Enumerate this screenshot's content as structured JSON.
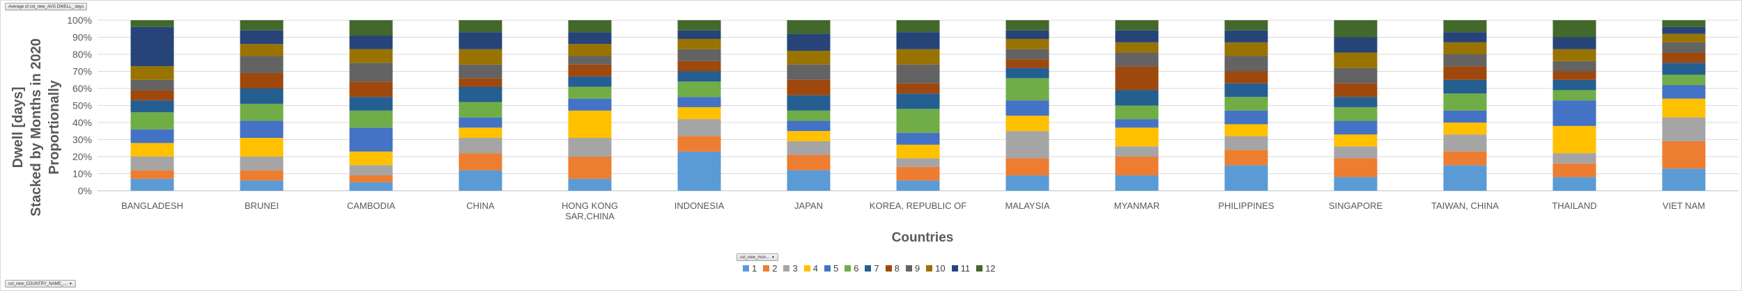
{
  "field_buttons": {
    "value_field": "Average of col_new_AVG DWELL_ days",
    "legend_field": "col_new_mon...",
    "axis_field": "col_new_COUNTRY_NAME_..."
  },
  "colors": [
    "#5b9bd5",
    "#ed7d31",
    "#a5a5a5",
    "#ffc000",
    "#4472c4",
    "#70ad47",
    "#255e91",
    "#9e480e",
    "#636363",
    "#997300",
    "#264478",
    "#43682b"
  ],
  "chart_data": {
    "type": "bar",
    "stacked": "percent",
    "xlabel": "Countries",
    "ylabel": [
      "Dwell [days]",
      "Stacked by Months in 2020",
      "Proportionally"
    ],
    "ylim": [
      0,
      100
    ],
    "yticks": [
      "0%",
      "10%",
      "20%",
      "30%",
      "40%",
      "50%",
      "60%",
      "70%",
      "80%",
      "90%",
      "100%"
    ],
    "categories": [
      "BANGLADESH",
      "BRUNEI",
      "CAMBODIA",
      "CHINA",
      "HONG KONG SAR,CHINA",
      "INDONESIA",
      "JAPAN",
      "KOREA, REPUBLIC OF",
      "MALAYSIA",
      "MYANMAR",
      "PHILIPPINES",
      "SINGAPORE",
      "TAIWAN, CHINA",
      "THAILAND",
      "VIET NAM"
    ],
    "category_lines": [
      [
        "BANGLADESH"
      ],
      [
        "BRUNEI"
      ],
      [
        "CAMBODIA"
      ],
      [
        "CHINA"
      ],
      [
        "HONG KONG",
        "SAR,CHINA"
      ],
      [
        "INDONESIA"
      ],
      [
        "JAPAN"
      ],
      [
        "KOREA, REPUBLIC OF"
      ],
      [
        "MALAYSIA"
      ],
      [
        "MYANMAR"
      ],
      [
        "PHILIPPINES"
      ],
      [
        "SINGAPORE"
      ],
      [
        "TAIWAN, CHINA"
      ],
      [
        "THAILAND"
      ],
      [
        "VIET NAM"
      ]
    ],
    "legend": [
      "1",
      "2",
      "3",
      "4",
      "5",
      "6",
      "7",
      "8",
      "9",
      "10",
      "11",
      "12"
    ],
    "series": [
      {
        "name": "1",
        "values": [
          7,
          6,
          5,
          12,
          7,
          23,
          12,
          6,
          9,
          9,
          15,
          8,
          15,
          8,
          13
        ]
      },
      {
        "name": "2",
        "values": [
          5,
          6,
          4,
          10,
          13,
          9,
          9,
          8,
          10,
          11,
          9,
          11,
          8,
          8,
          16
        ]
      },
      {
        "name": "3",
        "values": [
          8,
          8,
          6,
          9,
          11,
          10,
          8,
          5,
          16,
          6,
          8,
          7,
          10,
          6,
          14
        ]
      },
      {
        "name": "4",
        "values": [
          8,
          11,
          8,
          6,
          16,
          7,
          6,
          8,
          9,
          11,
          7,
          7,
          7,
          16,
          11
        ]
      },
      {
        "name": "5",
        "values": [
          8,
          10,
          14,
          6,
          7,
          6,
          6,
          7,
          9,
          5,
          8,
          8,
          7,
          15,
          8
        ]
      },
      {
        "name": "6",
        "values": [
          10,
          10,
          10,
          9,
          7,
          9,
          6,
          14,
          13,
          8,
          8,
          8,
          10,
          6,
          6
        ]
      },
      {
        "name": "7",
        "values": [
          7,
          9,
          8,
          9,
          6,
          6,
          9,
          9,
          6,
          9,
          8,
          6,
          8,
          6,
          7
        ]
      },
      {
        "name": "8",
        "values": [
          6,
          9,
          9,
          5,
          7,
          6,
          9,
          6,
          5,
          14,
          7,
          8,
          8,
          5,
          6
        ]
      },
      {
        "name": "9",
        "values": [
          6,
          10,
          11,
          8,
          5,
          7,
          9,
          11,
          6,
          8,
          9,
          9,
          7,
          6,
          6
        ]
      },
      {
        "name": "10",
        "values": [
          8,
          7,
          8,
          9,
          7,
          6,
          8,
          9,
          6,
          6,
          8,
          9,
          7,
          7,
          5
        ]
      },
      {
        "name": "11",
        "values": [
          23,
          8,
          8,
          10,
          7,
          5,
          10,
          10,
          5,
          7,
          7,
          9,
          6,
          7,
          4
        ]
      },
      {
        "name": "12",
        "values": [
          4,
          6,
          9,
          7,
          7,
          6,
          8,
          7,
          6,
          6,
          6,
          10,
          7,
          10,
          4
        ]
      }
    ]
  }
}
